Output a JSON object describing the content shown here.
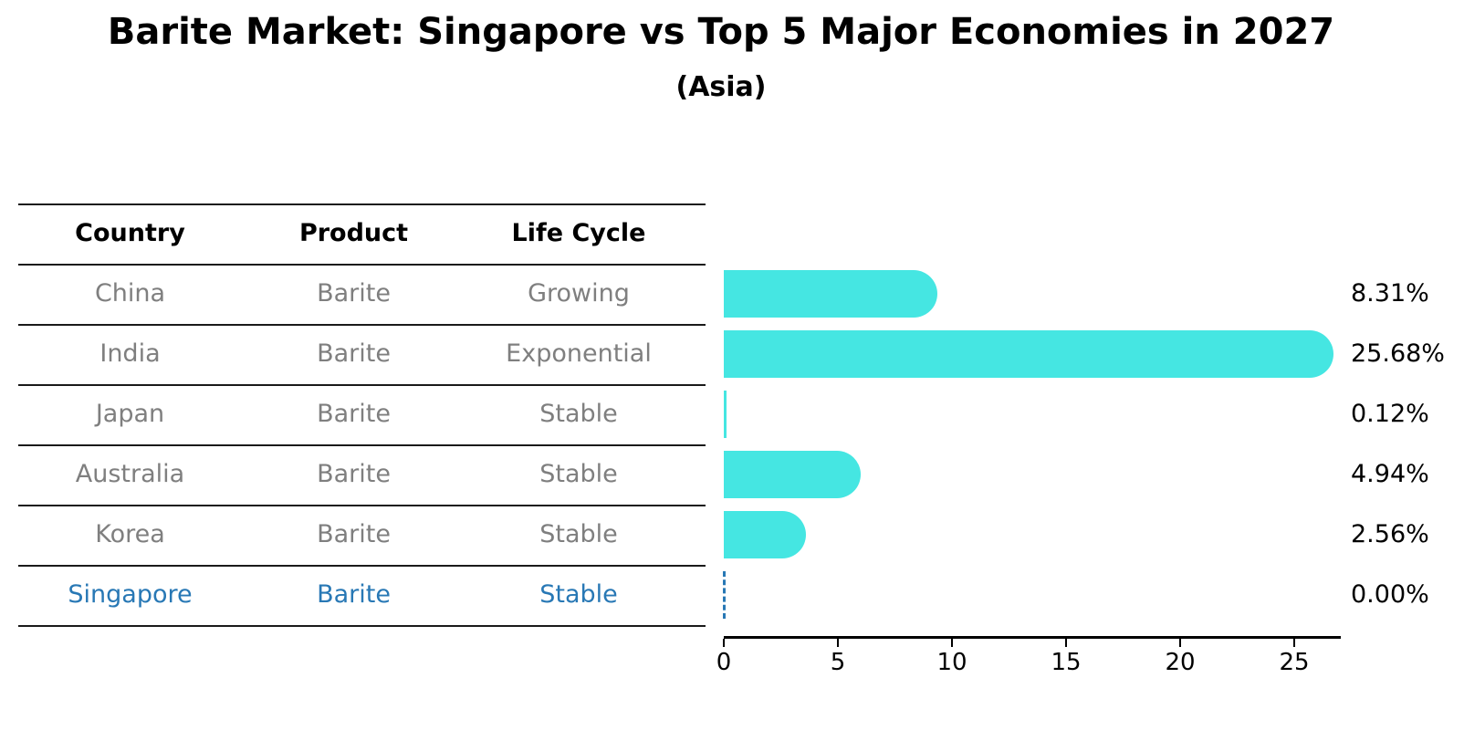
{
  "header": {
    "title": "Barite Market: Singapore vs Top 5 Major Economies in 2027",
    "subtitle": "(Asia)"
  },
  "table": {
    "columns": [
      "Country",
      "Product",
      "Life Cycle"
    ],
    "rows": [
      {
        "country": "China",
        "product": "Barite",
        "life_cycle": "Growing",
        "highlight": false
      },
      {
        "country": "India",
        "product": "Barite",
        "life_cycle": "Exponential",
        "highlight": false
      },
      {
        "country": "Japan",
        "product": "Barite",
        "life_cycle": "Stable",
        "highlight": false
      },
      {
        "country": "Australia",
        "product": "Barite",
        "life_cycle": "Stable",
        "highlight": false
      },
      {
        "country": "Korea",
        "product": "Barite",
        "life_cycle": "Stable",
        "highlight": false
      },
      {
        "country": "Singapore",
        "product": "Barite",
        "life_cycle": "Stable",
        "highlight": true
      }
    ]
  },
  "chart_data": {
    "type": "bar",
    "orientation": "horizontal",
    "title": "Barite Market: Singapore vs Top 5 Major Economies in 2027",
    "subtitle": "(Asia)",
    "categories": [
      "China",
      "India",
      "Japan",
      "Australia",
      "Korea",
      "Singapore"
    ],
    "values": [
      8.31,
      25.68,
      0.12,
      4.94,
      2.56,
      0.0
    ],
    "value_labels": [
      "8.31%",
      "25.68%",
      "0.12%",
      "4.94%",
      "2.56%",
      "0.00%"
    ],
    "x_ticks": [
      0,
      5,
      10,
      15,
      20,
      25
    ],
    "xlim": [
      0,
      27
    ],
    "xlabel": "",
    "ylabel": "",
    "grid": false,
    "legend": false,
    "highlight_category": "Singapore",
    "zero_bar_style": "dashed-outline"
  },
  "colors": {
    "bar": "#45e6e2",
    "highlight": "#2878b5",
    "cell_text": "#7f7f7f",
    "line": "#1a1a1a",
    "label_text": "#000000"
  }
}
